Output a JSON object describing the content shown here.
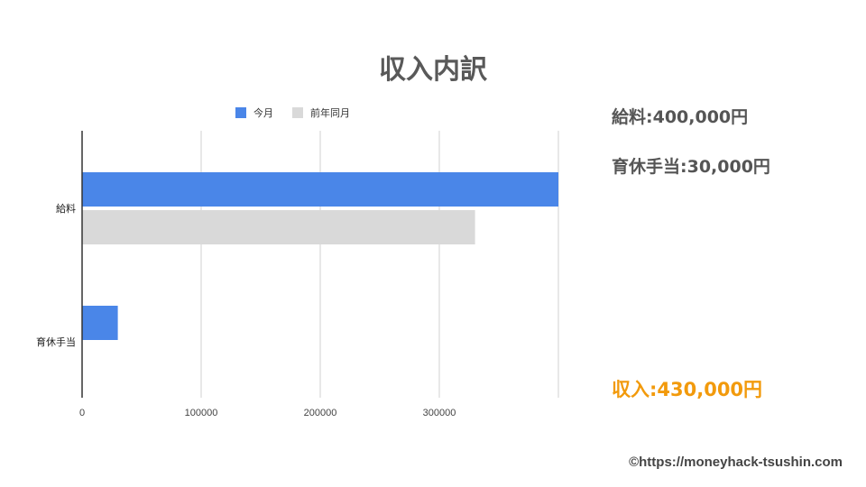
{
  "title": "収入内訳",
  "chart_data": {
    "type": "bar",
    "orientation": "horizontal",
    "categories": [
      "給料",
      "育休手当"
    ],
    "series": [
      {
        "name": "今月",
        "color": "#4a86e8",
        "values": [
          400000,
          30000
        ]
      },
      {
        "name": "前年同月",
        "color": "#d9d9d9",
        "values": [
          330000,
          null
        ]
      }
    ],
    "xlim": [
      0,
      400000
    ],
    "x_ticks": [
      "0",
      "100000",
      "200000",
      "300000"
    ],
    "x_tick_values": [
      0,
      100000,
      200000,
      300000
    ],
    "grid": true,
    "legend_position": "top"
  },
  "summary": {
    "salary": "給料:400,000円",
    "childcare": "育休手当:30,000円",
    "total": "収入:430,000円"
  },
  "credit": "©https://moneyhack-tsushin.com"
}
